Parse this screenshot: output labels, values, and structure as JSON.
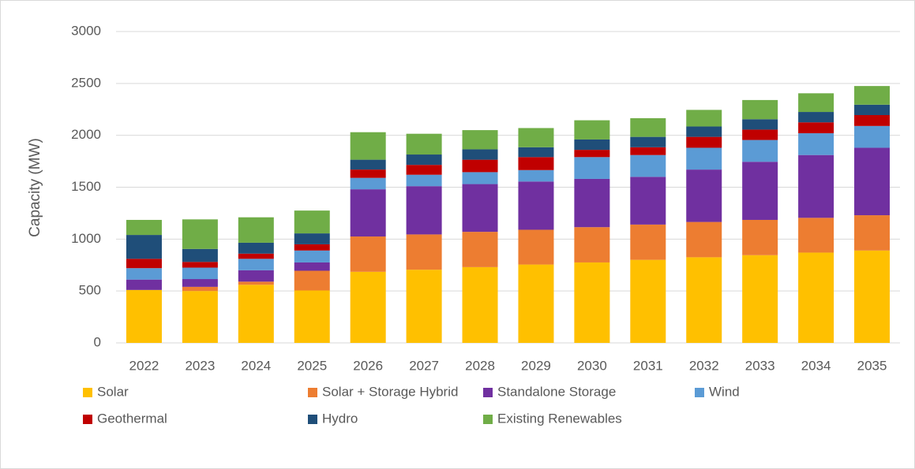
{
  "chart_data": {
    "type": "stacked_bar",
    "y_label": "Capacity (MW)",
    "categories": [
      "2022",
      "2023",
      "2024",
      "2025",
      "2026",
      "2027",
      "2028",
      "2029",
      "2030",
      "2031",
      "2032",
      "2033",
      "2034",
      "2035"
    ],
    "series": [
      {
        "name": "Solar",
        "color": "#ffc000",
        "values": [
          510,
          500,
          560,
          505,
          685,
          705,
          730,
          755,
          775,
          800,
          825,
          845,
          870,
          890
        ]
      },
      {
        "name": "Solar + Storage Hybrid",
        "color": "#ed7d31",
        "values": [
          0,
          40,
          30,
          190,
          340,
          340,
          340,
          335,
          340,
          340,
          340,
          340,
          335,
          340
        ]
      },
      {
        "name": "Standalone Storage",
        "color": "#7030a0",
        "values": [
          100,
          75,
          110,
          80,
          455,
          465,
          460,
          465,
          465,
          460,
          505,
          560,
          605,
          650
        ]
      },
      {
        "name": "Wind",
        "color": "#5b9bd5",
        "values": [
          110,
          110,
          110,
          115,
          110,
          110,
          115,
          110,
          210,
          210,
          210,
          210,
          210,
          210
        ]
      },
      {
        "name": "Geothermal",
        "color": "#c00000",
        "values": [
          90,
          55,
          50,
          60,
          80,
          95,
          120,
          125,
          70,
          75,
          105,
          100,
          105,
          105
        ]
      },
      {
        "name": "Hydro",
        "color": "#1f4e79",
        "values": [
          230,
          125,
          105,
          105,
          95,
          100,
          100,
          95,
          100,
          100,
          100,
          100,
          100,
          100
        ]
      },
      {
        "name": "Existing Renewables",
        "color": "#70ad47",
        "values": [
          145,
          285,
          245,
          220,
          265,
          200,
          185,
          185,
          185,
          180,
          160,
          185,
          180,
          180
        ]
      }
    ],
    "ylim": [
      0,
      3000
    ],
    "yticks": [
      0,
      500,
      1000,
      1500,
      2000,
      2500,
      3000
    ],
    "grid": true,
    "legend": "bottom"
  }
}
